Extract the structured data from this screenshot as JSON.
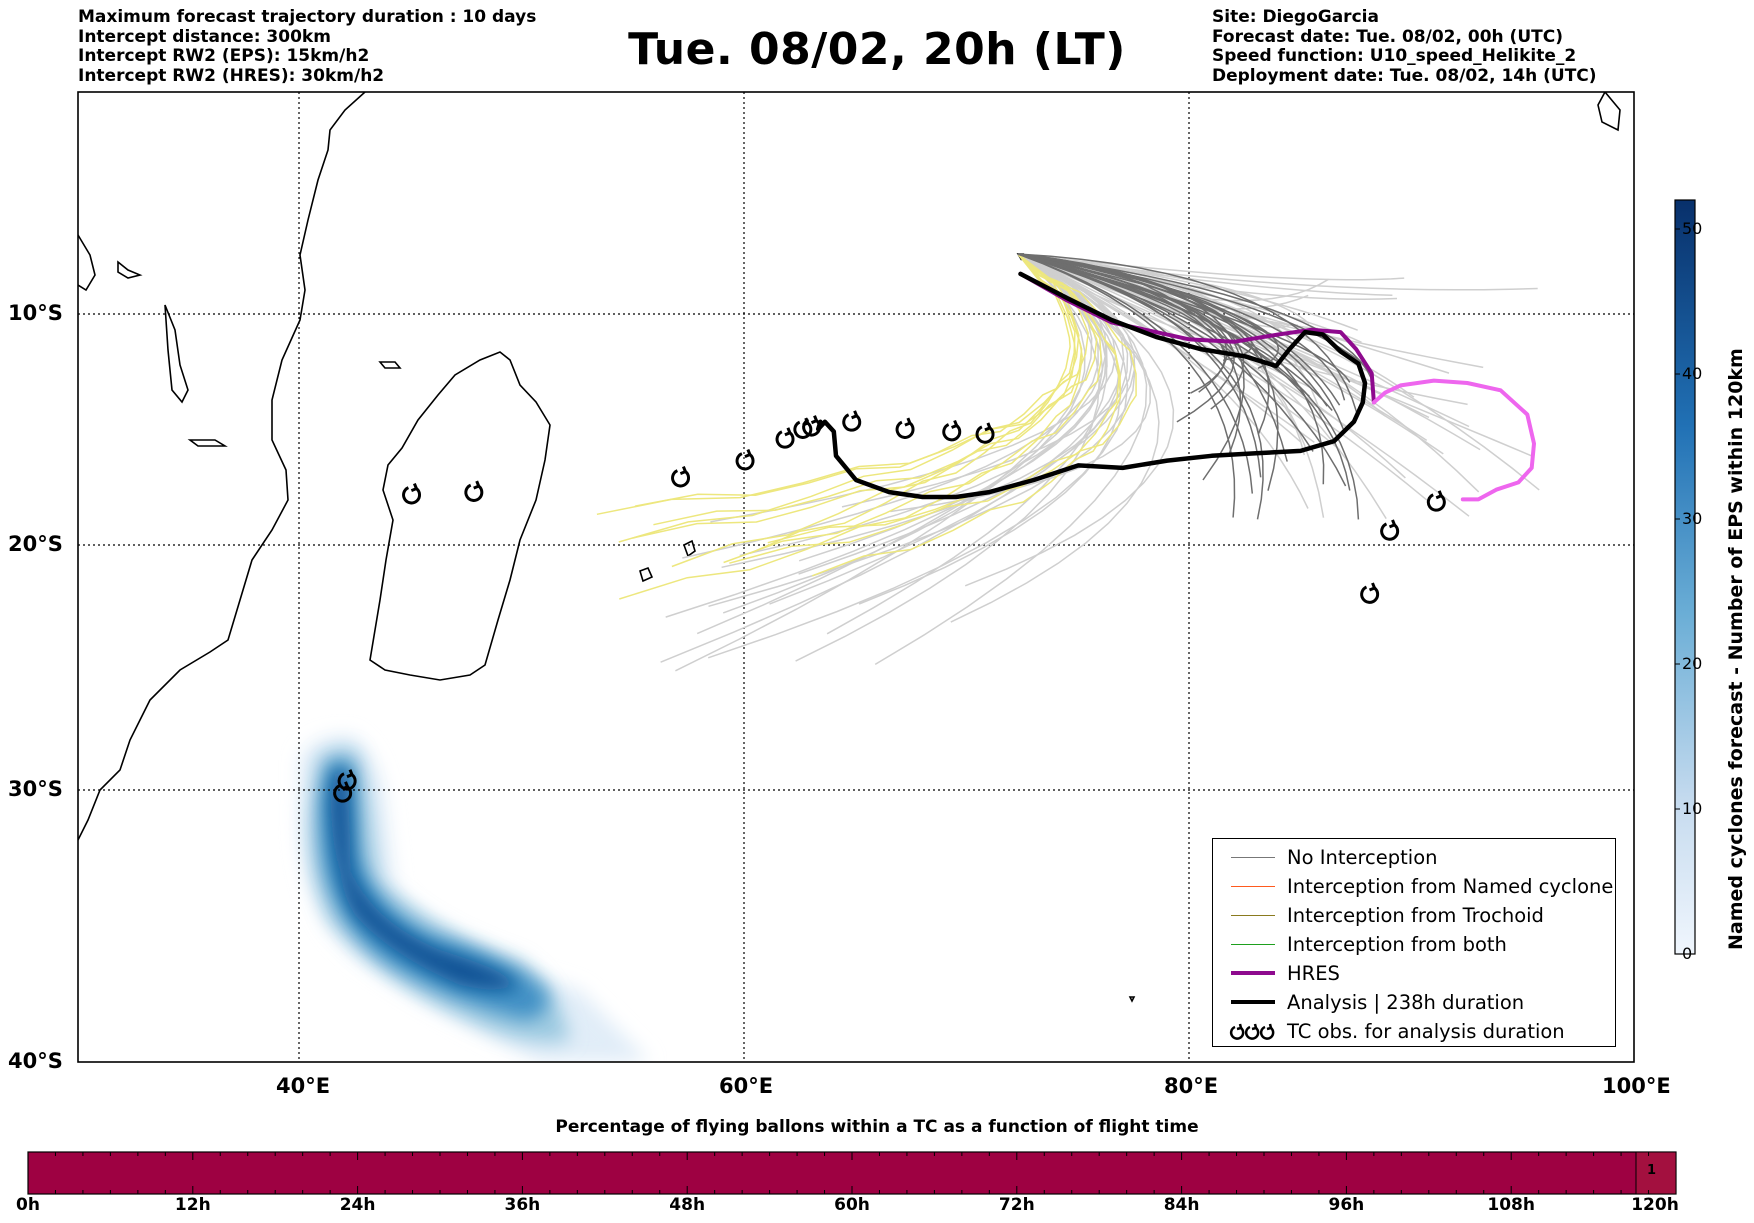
{
  "header": {
    "left_lines": [
      "Maximum forecast trajectory duration : 10 days",
      "Intercept distance: 300km",
      "Intercept RW2 (EPS):  15km/h2",
      "Intercept RW2 (HRES): 30km/h2"
    ],
    "title": "Tue. 08/02, 20h (LT)",
    "right_lines": [
      "Site: DiegoGarcia",
      "Forecast date: Tue. 08/02, 00h (UTC)",
      "Speed function: U10_speed_Helikite_2",
      "Deployment date: Tue. 08/02, 14h (UTC)"
    ]
  },
  "map": {
    "x_ticks": [
      "40°E",
      "60°E",
      "80°E",
      "100°E"
    ],
    "y_ticks": [
      "10°S",
      "20°S",
      "30°S",
      "40°S"
    ]
  },
  "legend": {
    "items": [
      {
        "label": "No Interception",
        "color": "#777777"
      },
      {
        "label": "Interception from Named cyclone",
        "color": "#ff5a1e"
      },
      {
        "label": "Interception from Trochoid",
        "color": "#8a7a1e"
      },
      {
        "label": "Interception from both",
        "color": "#1ea01e"
      },
      {
        "label": "HRES",
        "color": "#8e0a8e"
      },
      {
        "label": "Analysis | 238h duration",
        "color": "#000000"
      },
      {
        "label": "TC obs. for analysis duration",
        "color": "#000000"
      }
    ]
  },
  "colorbar": {
    "label": "Named cyclones forecast - Number of EPS within 120km",
    "ticks": [
      "0",
      "10",
      "20",
      "30",
      "40",
      "50"
    ]
  },
  "bottom": {
    "title": "Percentage of flying ballons within a TC as a function of flight time",
    "ticks": [
      "0h",
      "12h",
      "24h",
      "36h",
      "48h",
      "60h",
      "72h",
      "84h",
      "96h",
      "108h",
      "120h"
    ],
    "last_cell_value": "1",
    "bar_color": "#9e0142"
  },
  "chart_data": {
    "type": "line",
    "title": "Tue. 08/02, 20h (LT)",
    "xlim": [
      30,
      100
    ],
    "ylim": [
      -40,
      0
    ],
    "x_unit": "degrees longitude (E)",
    "y_unit": "degrees latitude (negative = S)",
    "grid": true,
    "legend_position": "lower-right",
    "series": [
      {
        "name": "HRES",
        "color": "#8e0a8e",
        "x": [
          72.4,
          74.5,
          76.5,
          78.5,
          80,
          82,
          84,
          85.5,
          86.8,
          87.5,
          88.2,
          88.3
        ],
        "y": [
          -7.5,
          -8.6,
          -9.5,
          -9.9,
          -10.2,
          -10.3,
          -10.0,
          -9.8,
          -9.9,
          -10.6,
          -11.6,
          -12.8
        ]
      },
      {
        "name": "HRES (continuation)",
        "color": "#ee66ee",
        "x": [
          88.3,
          88.8,
          89.5,
          91,
          92.5,
          94,
          95.2,
          95.5,
          95.4,
          94.8,
          93.8,
          93,
          92.3
        ],
        "y": [
          -12.8,
          -12.4,
          -12.1,
          -11.9,
          -12.0,
          -12.3,
          -13.3,
          -14.5,
          -15.5,
          -16.1,
          -16.4,
          -16.8,
          -16.8
        ]
      },
      {
        "name": "Analysis | 238h duration",
        "color": "#000000",
        "x": [
          72.4,
          74.5,
          76.5,
          78.5,
          80.5,
          82.5,
          83.9,
          84.5,
          85.2,
          86.0,
          86.8,
          87.6,
          87.9,
          87.8,
          87.4,
          86.5,
          85,
          83,
          81,
          79,
          77,
          75,
          73,
          71,
          69.5,
          68,
          66.5,
          65,
          64.1,
          64.0,
          63.6,
          63.3,
          63.4
        ],
        "y": [
          -7.5,
          -8.5,
          -9.4,
          -10.1,
          -10.6,
          -10.9,
          -11.3,
          -10.6,
          -9.9,
          -10.0,
          -10.7,
          -11.2,
          -12.0,
          -12.8,
          -13.6,
          -14.4,
          -14.8,
          -14.9,
          -15.0,
          -15.2,
          -15.5,
          -15.4,
          -16.0,
          -16.5,
          -16.7,
          -16.7,
          -16.5,
          -16.0,
          -15.0,
          -14.0,
          -13.6,
          -13.9,
          -13.6
        ]
      }
    ],
    "tc_observations": {
      "name": "TC obs. for analysis duration",
      "lon": [
        45.0,
        47.8,
        57.1,
        60.0,
        61.8,
        62.6,
        63.0,
        64.8,
        67.2,
        69.3,
        70.8,
        91.1,
        89.0,
        88.1,
        42.1,
        41.9
      ],
      "lat": [
        -16.6,
        -16.5,
        -15.9,
        -15.2,
        -14.3,
        -13.9,
        -13.8,
        -13.6,
        -13.9,
        -14.0,
        -14.1,
        -16.9,
        -18.1,
        -20.7,
        -28.4,
        -28.9
      ]
    },
    "density_colorbar": {
      "min": 0,
      "max": 52,
      "ticks": [
        0,
        10,
        20,
        30,
        40,
        50
      ]
    }
  }
}
